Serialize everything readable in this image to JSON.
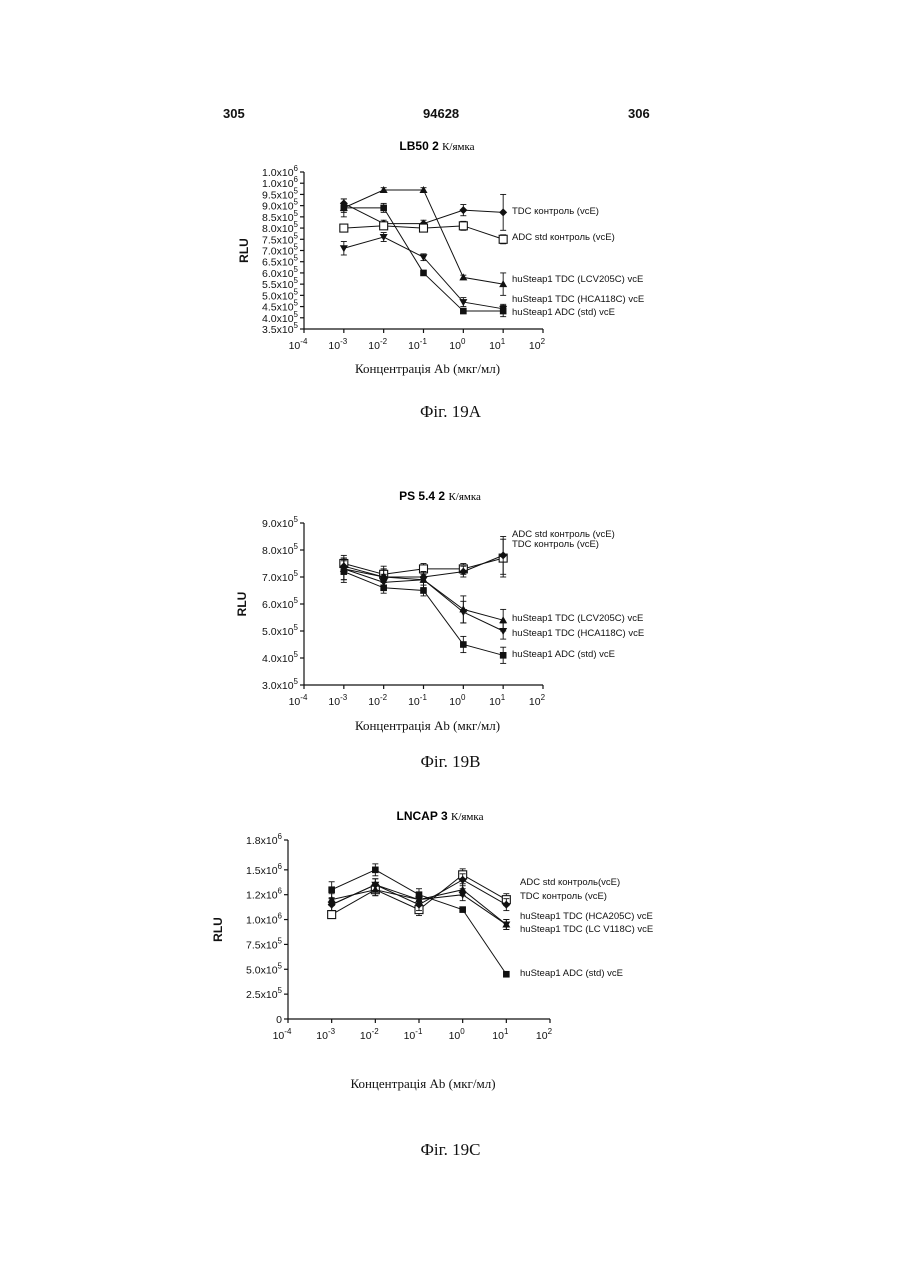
{
  "header": {
    "left_page": "305",
    "doc_number": "94628",
    "right_page": "306"
  },
  "chart_data": [
    {
      "type": "line",
      "title": "LB50 2",
      "title_suffix": "К/ямка",
      "caption": "Фіг. 19A",
      "ylabel": "RLU",
      "xlabel": "Концентрація Ab (мкг/мл)",
      "x_scale": "log",
      "x_ticks": [
        "10-4",
        "10-3",
        "10-2",
        "10-1",
        "100",
        "101",
        "102"
      ],
      "x_tick_bases": [
        "10",
        "10",
        "10",
        "10",
        "10",
        "10",
        "10"
      ],
      "x_tick_exps": [
        "-4",
        "-3",
        "-2",
        "-1",
        "0",
        "1",
        "2"
      ],
      "ylim": [
        350000,
        1050000
      ],
      "y_ticks": [
        350000,
        400000,
        450000,
        500000,
        550000,
        600000,
        650000,
        700000,
        750000,
        800000,
        850000,
        900000,
        950000,
        1000000,
        1050000
      ],
      "y_tick_labels": [
        {
          "m": "3.5",
          "e": "5"
        },
        {
          "m": "4.0",
          "e": "5"
        },
        {
          "m": "4.5",
          "e": "5"
        },
        {
          "m": "5.0",
          "e": "5"
        },
        {
          "m": "5.5",
          "e": "5"
        },
        {
          "m": "6.0",
          "e": "5"
        },
        {
          "m": "6.5",
          "e": "5"
        },
        {
          "m": "7.0",
          "e": "5"
        },
        {
          "m": "7.5",
          "e": "5"
        },
        {
          "m": "8.0",
          "e": "5"
        },
        {
          "m": "8.5",
          "e": "5"
        },
        {
          "m": "9.0",
          "e": "5"
        },
        {
          "m": "9.5",
          "e": "5"
        },
        {
          "m": "1.0",
          "e": "6"
        },
        {
          "m": "1.0",
          "e": "6"
        }
      ],
      "x": [
        0.001,
        0.01,
        0.1,
        1,
        10
      ],
      "series": [
        {
          "name": "TDC контроль (vcE)",
          "marker": "diamond",
          "values": [
            910000,
            820000,
            820000,
            880000,
            870000
          ],
          "err": [
            20000,
            15000,
            15000,
            25000,
            80000
          ]
        },
        {
          "name": "ADC std контроль (vcE)",
          "marker": "square-open",
          "values": [
            800000,
            810000,
            800000,
            810000,
            750000
          ],
          "err": [
            15000,
            15000,
            15000,
            20000,
            20000
          ]
        },
        {
          "name": "huSteap1 TDC (LCV205C) vcE",
          "marker": "triangle-up",
          "values": [
            890000,
            970000,
            970000,
            580000,
            550000
          ],
          "err": [
            40000,
            10000,
            10000,
            10000,
            50000
          ]
        },
        {
          "name": "huSteap1 TDC (HCA118C) vcE",
          "marker": "triangle-down",
          "values": [
            710000,
            760000,
            670000,
            470000,
            440000
          ],
          "err": [
            30000,
            20000,
            15000,
            20000,
            20000
          ]
        },
        {
          "name": "huSteap1 ADC (std) vcE",
          "marker": "square-filled",
          "values": [
            890000,
            890000,
            600000,
            430000,
            430000
          ],
          "err": [
            20000,
            20000,
            10000,
            10000,
            25000
          ]
        }
      ]
    },
    {
      "type": "line",
      "title": "PS 5.4 2",
      "title_suffix": "К/ямка",
      "caption": "Фіг. 19B",
      "ylabel": "RLU",
      "xlabel": "Концентрація Ab (мкг/мл)",
      "x_scale": "log",
      "x_ticks": [
        "10-4",
        "10-3",
        "10-2",
        "10-1",
        "100",
        "101",
        "102"
      ],
      "x_tick_bases": [
        "10",
        "10",
        "10",
        "10",
        "10",
        "10",
        "10"
      ],
      "x_tick_exps": [
        "-4",
        "-3",
        "-2",
        "-1",
        "0",
        "1",
        "2"
      ],
      "ylim": [
        300000,
        900000
      ],
      "y_ticks": [
        300000,
        400000,
        500000,
        600000,
        700000,
        800000,
        900000
      ],
      "y_tick_labels": [
        {
          "m": "3.0",
          "e": "5"
        },
        {
          "m": "4.0",
          "e": "5"
        },
        {
          "m": "5.0",
          "e": "5"
        },
        {
          "m": "6.0",
          "e": "5"
        },
        {
          "m": "7.0",
          "e": "5"
        },
        {
          "m": "8.0",
          "e": "5"
        },
        {
          "m": "9.0",
          "e": "5"
        }
      ],
      "x": [
        0.001,
        0.01,
        0.1,
        1,
        10
      ],
      "series": [
        {
          "name": "ADC std контроль (vcE)",
          "marker": "square-open",
          "values": [
            750000,
            710000,
            730000,
            730000,
            770000
          ],
          "err": [
            30000,
            30000,
            20000,
            20000,
            70000
          ]
        },
        {
          "name": "TDC контроль (vcE)",
          "marker": "diamond",
          "values": [
            740000,
            700000,
            700000,
            720000,
            780000
          ],
          "err": [
            30000,
            30000,
            20000,
            20000,
            70000
          ]
        },
        {
          "name": "huSteap1 TDC (LCV205C) vcE",
          "marker": "triangle-up",
          "values": [
            730000,
            700000,
            690000,
            580000,
            540000
          ],
          "err": [
            40000,
            30000,
            30000,
            50000,
            40000
          ]
        },
        {
          "name": "huSteap1 TDC (HCA118C) vcE",
          "marker": "triangle-down",
          "values": [
            730000,
            680000,
            690000,
            570000,
            500000
          ],
          "err": [
            40000,
            30000,
            30000,
            40000,
            30000
          ]
        },
        {
          "name": "huSteap1 ADC (std) vcE",
          "marker": "square-filled",
          "values": [
            720000,
            660000,
            650000,
            450000,
            410000
          ],
          "err": [
            40000,
            20000,
            20000,
            30000,
            30000
          ]
        }
      ]
    },
    {
      "type": "line",
      "title": "LNCAP 3",
      "title_suffix": "К/ямка",
      "caption": "Фіг. 19C",
      "ylabel": "RLU",
      "xlabel": "Концентрація Ab (мкг/мл)",
      "x_scale": "log",
      "x_ticks": [
        "10-4",
        "10-3",
        "10-2",
        "10-1",
        "100",
        "101",
        "102"
      ],
      "x_tick_bases": [
        "10",
        "10",
        "10",
        "10",
        "10",
        "10",
        "10"
      ],
      "x_tick_exps": [
        "-4",
        "-3",
        "-2",
        "-1",
        "0",
        "1",
        "2"
      ],
      "ylim": [
        0,
        1800000
      ],
      "y_ticks": [
        0,
        250000,
        500000,
        750000,
        1000000,
        1250000,
        1500000,
        1800000
      ],
      "y_tick_labels": [
        {
          "m": "0",
          "e": ""
        },
        {
          "m": "2.5x10",
          "e": "5"
        },
        {
          "m": "5.0x10",
          "e": "5"
        },
        {
          "m": "7.5x10",
          "e": "5"
        },
        {
          "m": "1.0x10",
          "e": "6"
        },
        {
          "m": "1.2x10",
          "e": "6"
        },
        {
          "m": "1.5x10",
          "e": "6"
        },
        {
          "m": "1.8x10",
          "e": "6"
        }
      ],
      "x": [
        0.001,
        0.01,
        0.1,
        1,
        10
      ],
      "series": [
        {
          "name": "ADC std контроль(vcE)",
          "marker": "square-open",
          "values": [
            1050000,
            1300000,
            1100000,
            1450000,
            1200000
          ],
          "err": [
            40000,
            60000,
            60000,
            60000,
            60000
          ]
        },
        {
          "name": "TDC контроль (vcE)",
          "marker": "diamond",
          "values": [
            1150000,
            1350000,
            1150000,
            1400000,
            1150000
          ],
          "err": [
            60000,
            60000,
            60000,
            60000,
            60000
          ]
        },
        {
          "name": "huSteap1 TDC (HCA205C) vcE",
          "marker": "triangle-up",
          "values": [
            1200000,
            1300000,
            1200000,
            1300000,
            950000
          ],
          "err": [
            60000,
            60000,
            60000,
            60000,
            50000
          ]
        },
        {
          "name": "huSteap1 TDC (LC V118C) vcE",
          "marker": "triangle-down",
          "values": [
            1150000,
            1350000,
            1200000,
            1250000,
            950000
          ],
          "err": [
            60000,
            60000,
            60000,
            60000,
            50000
          ]
        },
        {
          "name": "huSteap1 ADC (std) vcE",
          "marker": "square-filled",
          "values": [
            1300000,
            1500000,
            1250000,
            1100000,
            450000
          ],
          "err": [
            80000,
            60000,
            60000,
            20000,
            20000
          ]
        }
      ]
    }
  ]
}
